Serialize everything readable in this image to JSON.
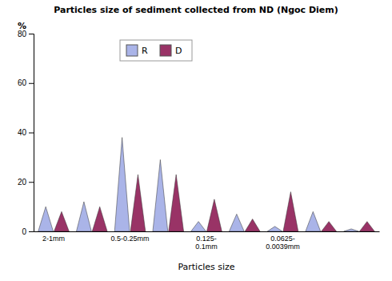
{
  "chart_data": {
    "type": "bar",
    "title": "Particles size of sediment collected from ND (Ngoc Diem)",
    "x_label": "Particles size",
    "y_label": "%",
    "categories": [
      "2-1mm",
      null,
      "0.5-0.25mm",
      null,
      "0.125-\n0.1mm",
      null,
      "0.0625-\n0.0039mm",
      null,
      null
    ],
    "series": [
      {
        "name": "R",
        "color": "#aab4e8",
        "values": [
          10,
          12,
          38,
          29,
          4,
          7,
          2,
          8,
          1
        ]
      },
      {
        "name": "D",
        "color": "#993366",
        "values": [
          8,
          10,
          23,
          23,
          13,
          5,
          16,
          4,
          4
        ]
      }
    ],
    "ylim": [
      0,
      80
    ],
    "yticks": [
      0,
      20,
      40,
      60,
      80
    ],
    "grid": false,
    "legend": "upper left"
  }
}
